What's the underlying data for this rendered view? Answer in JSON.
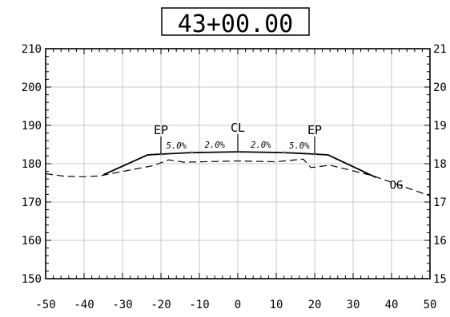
{
  "station": "43+00.00",
  "chart_data": {
    "type": "line",
    "title": "43+00.00",
    "xlabel": "",
    "ylabel": "",
    "xlim": [
      -50,
      50
    ],
    "ylim": [
      150,
      210
    ],
    "grid": true,
    "x_ticks": [
      "-50",
      "-40",
      "-30",
      "-20",
      "-10",
      "0",
      "10",
      "20",
      "30",
      "40",
      "50"
    ],
    "y_ticks": [
      "150",
      "160",
      "170",
      "180",
      "190",
      "200",
      "210"
    ],
    "y_ticks_right": [
      "15",
      "16",
      "17",
      "18",
      "19",
      "20",
      "21"
    ],
    "series": [
      {
        "name": "",
        "style": "solid",
        "x": [
          -35,
          -23.5,
          -20,
          -12,
          0,
          12,
          20,
          23.5,
          36
        ],
        "y": [
          177.1,
          182.3,
          182.5,
          182.9,
          183.1,
          182.9,
          182.5,
          182.3,
          176.4
        ]
      },
      {
        "name": "OG",
        "style": "dashed",
        "x": [
          -50,
          -45,
          -40,
          -36,
          -34,
          -22,
          -18,
          -14,
          0,
          10,
          17,
          19,
          24,
          35,
          50
        ],
        "y": [
          177.4,
          176.7,
          176.6,
          176.8,
          177.2,
          179.5,
          181.0,
          180.4,
          180.7,
          180.5,
          181.2,
          179.0,
          179.6,
          176.9,
          171.6
        ]
      }
    ],
    "annotations": [
      {
        "text": "EP",
        "x": -20,
        "y": 182.5,
        "kind": "marker"
      },
      {
        "text": "CL",
        "x": 0,
        "y": 183.1,
        "kind": "marker"
      },
      {
        "text": "EP",
        "x": 20,
        "y": 182.5,
        "kind": "marker"
      },
      {
        "text": "5.0%",
        "x": -16,
        "y": 183.5,
        "kind": "slope"
      },
      {
        "text": "2.0%",
        "x": -6,
        "y": 183.8,
        "kind": "slope"
      },
      {
        "text": "2.0%",
        "x": 6,
        "y": 183.8,
        "kind": "slope"
      },
      {
        "text": "5.0%",
        "x": 16,
        "y": 183.5,
        "kind": "slope"
      },
      {
        "text": "OG",
        "x": 39.5,
        "y": 174.5,
        "kind": "label"
      }
    ]
  }
}
